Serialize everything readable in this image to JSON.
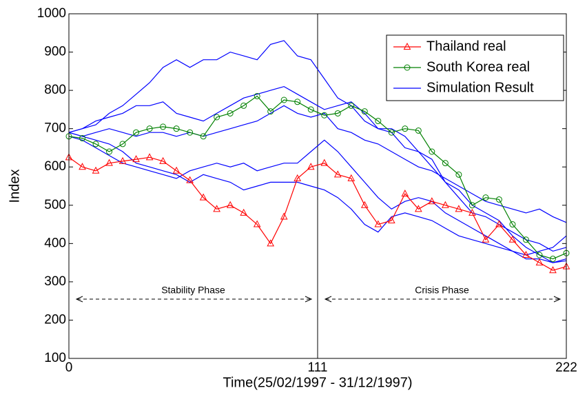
{
  "chart_data": {
    "type": "line",
    "x_label": "Time(25/02/1997 - 31/12/1997)",
    "y_label": "Index",
    "x": [
      0,
      6,
      12,
      18,
      24,
      30,
      36,
      42,
      48,
      54,
      60,
      66,
      72,
      78,
      84,
      90,
      96,
      102,
      108,
      114,
      120,
      126,
      132,
      138,
      144,
      150,
      156,
      162,
      168,
      174,
      180,
      186,
      192,
      198,
      204,
      210,
      216,
      222
    ],
    "series": [
      {
        "name": "Thailand real",
        "color": "#ff0000",
        "marker": "triangle",
        "values": [
          625,
          600,
          590,
          610,
          615,
          620,
          625,
          615,
          590,
          565,
          520,
          490,
          500,
          480,
          450,
          400,
          470,
          570,
          600,
          610,
          580,
          570,
          500,
          450,
          460,
          530,
          490,
          510,
          500,
          490,
          480,
          410,
          450,
          410,
          370,
          350,
          330,
          340
        ]
      },
      {
        "name": "South Korea real",
        "color": "#008000",
        "marker": "circle",
        "values": [
          680,
          675,
          660,
          640,
          660,
          690,
          700,
          705,
          700,
          690,
          680,
          730,
          740,
          760,
          785,
          745,
          775,
          770,
          750,
          735,
          740,
          760,
          745,
          720,
          690,
          700,
          695,
          640,
          610,
          580,
          500,
          520,
          515,
          450,
          410,
          370,
          360,
          375
        ]
      },
      {
        "name": "Simulation Result",
        "color": "#0000ff",
        "marker": "none",
        "values": [
          [
            690,
            700,
            710,
            740,
            760,
            790,
            820,
            860,
            880,
            860,
            880,
            880,
            900,
            890,
            880,
            920,
            930,
            890,
            880,
            830,
            780,
            760,
            720,
            700,
            690,
            650,
            640,
            600,
            560,
            540,
            500,
            480,
            460,
            420,
            390,
            370,
            350,
            360
          ],
          [
            690,
            700,
            720,
            730,
            740,
            760,
            760,
            770,
            740,
            730,
            720,
            740,
            760,
            780,
            790,
            800,
            810,
            790,
            770,
            750,
            760,
            770,
            740,
            700,
            700,
            680,
            640,
            620,
            560,
            520,
            480,
            470,
            450,
            430,
            410,
            400,
            380,
            390
          ],
          [
            690,
            680,
            690,
            700,
            690,
            680,
            690,
            690,
            680,
            690,
            680,
            690,
            700,
            710,
            720,
            740,
            760,
            740,
            730,
            740,
            700,
            690,
            670,
            660,
            640,
            620,
            600,
            590,
            570,
            550,
            530,
            510,
            500,
            490,
            480,
            490,
            470,
            455
          ],
          [
            680,
            670,
            650,
            630,
            610,
            600,
            590,
            580,
            570,
            590,
            600,
            610,
            600,
            610,
            590,
            600,
            610,
            610,
            640,
            670,
            640,
            600,
            560,
            520,
            490,
            510,
            520,
            510,
            480,
            460,
            440,
            420,
            400,
            380,
            370,
            380,
            390,
            420
          ],
          [
            690,
            680,
            670,
            660,
            640,
            610,
            600,
            590,
            580,
            560,
            580,
            570,
            560,
            540,
            550,
            560,
            560,
            560,
            550,
            540,
            520,
            490,
            450,
            430,
            470,
            480,
            470,
            460,
            440,
            420,
            410,
            400,
            390,
            380,
            360,
            360,
            350,
            355
          ]
        ]
      }
    ],
    "xlim": [
      0,
      222
    ],
    "xticks": [
      0,
      111,
      222
    ],
    "ylim": [
      100,
      1000
    ],
    "yticks": [
      100,
      200,
      300,
      400,
      500,
      600,
      700,
      800,
      900,
      1000
    ],
    "annotations": [
      "Stability Phase",
      "Crisis Phase"
    ],
    "legend": "upper right",
    "grid": false
  }
}
